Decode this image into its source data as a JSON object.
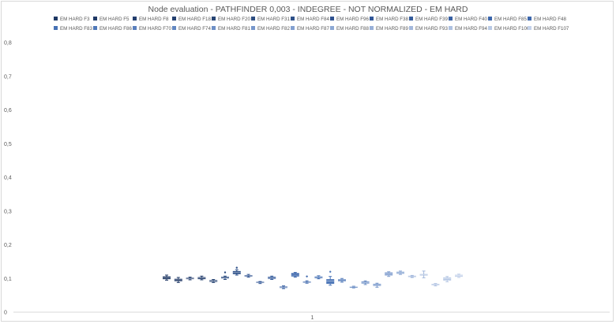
{
  "chart_data": {
    "type": "box",
    "title": "Node evaluation - PATHFINDER 0,003 - INDEGREE - NOT NORMALIZED - EM HARD",
    "xlabel": "",
    "ylabel": "",
    "categories": [
      "1"
    ],
    "ylim": [
      0,
      0.8
    ],
    "yticks": [
      "0",
      "0,1",
      "0,2",
      "0,3",
      "0,4",
      "0,5",
      "0,6",
      "0,7",
      "0,8"
    ],
    "grid": false,
    "legend_position": "top",
    "series": [
      {
        "name": "EM HARD F3",
        "color": "#1f3864",
        "min": 0.095,
        "q1": 0.098,
        "median": 0.102,
        "q3": 0.106,
        "max": 0.11
      },
      {
        "name": "EM HARD F5",
        "color": "#203966",
        "min": 0.088,
        "q1": 0.092,
        "median": 0.096,
        "q3": 0.099,
        "max": 0.103
      },
      {
        "name": "EM HARD F8",
        "color": "#243e6e",
        "min": 0.096,
        "q1": 0.098,
        "median": 0.1,
        "q3": 0.102,
        "max": 0.104
      },
      {
        "name": "EM HARD F18",
        "color": "#25406f",
        "min": 0.096,
        "q1": 0.098,
        "median": 0.101,
        "q3": 0.104,
        "max": 0.107
      },
      {
        "name": "EM HARD F20",
        "color": "#284574",
        "min": 0.088,
        "q1": 0.09,
        "median": 0.092,
        "q3": 0.095,
        "max": 0.097
      },
      {
        "name": "EM HARD F31",
        "color": "#2c4c80",
        "min": 0.097,
        "q1": 0.1,
        "median": 0.102,
        "q3": 0.105,
        "max": 0.107,
        "outlier": 0.118
      },
      {
        "name": "EM HARD F84",
        "color": "#2e5089",
        "min": 0.11,
        "q1": 0.113,
        "median": 0.118,
        "q3": 0.122,
        "max": 0.126,
        "outlier": 0.132
      },
      {
        "name": "EM HARD F96",
        "color": "#2f5290",
        "min": 0.104,
        "q1": 0.106,
        "median": 0.108,
        "q3": 0.11,
        "max": 0.112
      },
      {
        "name": "EM HARD F38",
        "color": "#325798",
        "min": 0.085,
        "q1": 0.087,
        "median": 0.088,
        "q3": 0.09,
        "max": 0.091
      },
      {
        "name": "EM HARD F39",
        "color": "#355c9c",
        "min": 0.097,
        "q1": 0.099,
        "median": 0.102,
        "q3": 0.105,
        "max": 0.107
      },
      {
        "name": "EM HARD F40",
        "color": "#3860a3",
        "min": 0.07,
        "q1": 0.072,
        "median": 0.074,
        "q3": 0.076,
        "max": 0.078
      },
      {
        "name": "EM HARD F85",
        "color": "#3b66ac",
        "min": 0.104,
        "q1": 0.106,
        "median": 0.11,
        "q3": 0.116,
        "max": 0.118
      },
      {
        "name": "EM HARD F48",
        "color": "#3e68ad",
        "min": 0.086,
        "q1": 0.088,
        "median": 0.089,
        "q3": 0.091,
        "max": 0.093,
        "outlier": 0.106
      },
      {
        "name": "EM HARD F83",
        "color": "#4772b5",
        "min": 0.099,
        "q1": 0.101,
        "median": 0.104,
        "q3": 0.106,
        "max": 0.108
      },
      {
        "name": "EM HARD F86",
        "color": "#5079b9",
        "min": 0.08,
        "q1": 0.084,
        "median": 0.092,
        "q3": 0.098,
        "max": 0.106,
        "outlier": 0.12
      },
      {
        "name": "EM HARD F70",
        "color": "#5a80bd",
        "min": 0.089,
        "q1": 0.092,
        "median": 0.096,
        "q3": 0.098,
        "max": 0.1
      },
      {
        "name": "EM HARD F74",
        "color": "#6287c1",
        "min": 0.072,
        "q1": 0.074,
        "median": 0.075,
        "q3": 0.076,
        "max": 0.077
      },
      {
        "name": "EM HARD F81",
        "color": "#6e90c6",
        "min": 0.082,
        "q1": 0.085,
        "median": 0.088,
        "q3": 0.091,
        "max": 0.093
      },
      {
        "name": "EM HARD F82",
        "color": "#7797cb",
        "min": 0.074,
        "q1": 0.078,
        "median": 0.081,
        "q3": 0.084,
        "max": 0.086
      },
      {
        "name": "EM HARD F87",
        "color": "#83a0d0",
        "min": 0.106,
        "q1": 0.109,
        "median": 0.114,
        "q3": 0.118,
        "max": 0.12
      },
      {
        "name": "EM HARD F88",
        "color": "#8ca8d4",
        "min": 0.112,
        "q1": 0.114,
        "median": 0.117,
        "q3": 0.12,
        "max": 0.122
      },
      {
        "name": "EM HARD F89",
        "color": "#98b0d8",
        "min": 0.103,
        "q1": 0.105,
        "median": 0.107,
        "q3": 0.108,
        "max": 0.109
      },
      {
        "name": "EM HARD F93",
        "color": "#a3b8dc",
        "min": 0.102,
        "q1": 0.109,
        "median": 0.111,
        "q3": 0.113,
        "max": 0.122
      },
      {
        "name": "EM HARD F94",
        "color": "#aec1e1",
        "min": 0.078,
        "q1": 0.08,
        "median": 0.082,
        "q3": 0.084,
        "max": 0.085
      },
      {
        "name": "EM HARD F100",
        "color": "#b8c9e5",
        "min": 0.09,
        "q1": 0.094,
        "median": 0.099,
        "q3": 0.103,
        "max": 0.106
      },
      {
        "name": "EM HARD F107",
        "color": "#c3d1ea",
        "min": 0.103,
        "q1": 0.105,
        "median": 0.108,
        "q3": 0.111,
        "max": 0.113
      }
    ]
  }
}
